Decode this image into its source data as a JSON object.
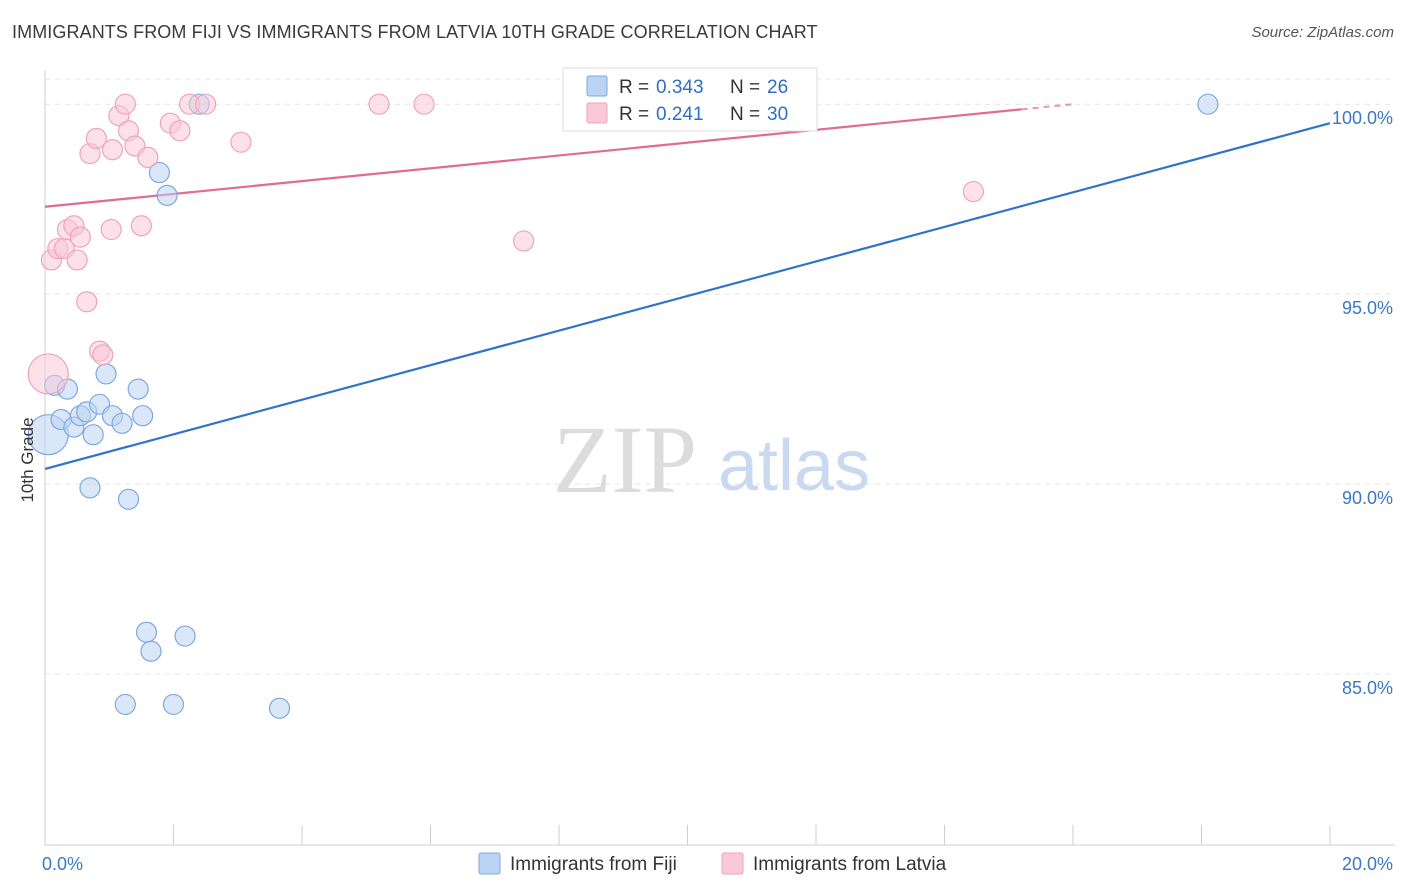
{
  "title": "IMMIGRANTS FROM FIJI VS IMMIGRANTS FROM LATVIA 10TH GRADE CORRELATION CHART",
  "source": "Source: ZipAtlas.com",
  "watermark": {
    "zip": "ZIP",
    "atlas": "atlas"
  },
  "colors": {
    "fiji_fill": "#bcd4f3",
    "fiji_stroke": "#7ea8de",
    "fiji_line": "#2f74c9",
    "latvia_fill": "#f9c9d7",
    "latvia_stroke": "#eea3ba",
    "latvia_line": "#e06b93",
    "grid": "#e3e3e3",
    "axis_label": "#3b78c4"
  },
  "legend": {
    "fiji": {
      "r_label": "R = ",
      "r_value": "0.343",
      "n_label": "N = ",
      "n_value": "26"
    },
    "latvia": {
      "r_label": "R = ",
      "r_value": "0.241",
      "n_label": "N = ",
      "n_value": "30"
    }
  },
  "chart_data": {
    "type": "scatter",
    "title": "IMMIGRANTS FROM FIJI VS IMMIGRANTS FROM LATVIA 10TH GRADE CORRELATION CHART",
    "xlabel": "",
    "ylabel": "10th Grade",
    "xlim": [
      0,
      20
    ],
    "ylim": [
      80.5,
      100.9
    ],
    "x_tick_labels": [
      {
        "value": 0,
        "label": "0.0%"
      },
      {
        "value": 20,
        "label": "20.0%"
      }
    ],
    "y_tick_labels": [
      {
        "value": 100,
        "label": "100.0%"
      },
      {
        "value": 95,
        "label": "95.0%"
      },
      {
        "value": 90,
        "label": "90.0%"
      },
      {
        "value": 85,
        "label": "85.0%"
      }
    ],
    "series": [
      {
        "name": "Immigrants from Fiji",
        "key": "fiji",
        "trend": {
          "x0": 0,
          "y0": 90.4,
          "x1": 20,
          "y1": 99.5,
          "dash_from": null
        },
        "points": [
          {
            "x": 0.05,
            "y": 91.3,
            "r": 20
          },
          {
            "x": 0.15,
            "y": 92.6,
            "r": 10
          },
          {
            "x": 0.35,
            "y": 92.5,
            "r": 10
          },
          {
            "x": 0.25,
            "y": 91.7,
            "r": 10
          },
          {
            "x": 0.45,
            "y": 91.5,
            "r": 10
          },
          {
            "x": 0.55,
            "y": 91.8,
            "r": 10
          },
          {
            "x": 0.65,
            "y": 91.9,
            "r": 10
          },
          {
            "x": 0.75,
            "y": 91.3,
            "r": 10
          },
          {
            "x": 0.85,
            "y": 92.1,
            "r": 10
          },
          {
            "x": 0.95,
            "y": 92.9,
            "r": 10
          },
          {
            "x": 1.05,
            "y": 91.8,
            "r": 10
          },
          {
            "x": 1.2,
            "y": 91.6,
            "r": 10
          },
          {
            "x": 1.45,
            "y": 92.5,
            "r": 10
          },
          {
            "x": 1.52,
            "y": 91.8,
            "r": 10
          },
          {
            "x": 0.7,
            "y": 89.9,
            "r": 10
          },
          {
            "x": 1.3,
            "y": 89.6,
            "r": 10
          },
          {
            "x": 1.78,
            "y": 98.2,
            "r": 10
          },
          {
            "x": 1.9,
            "y": 97.6,
            "r": 10
          },
          {
            "x": 2.4,
            "y": 100.0,
            "r": 10
          },
          {
            "x": 1.58,
            "y": 86.1,
            "r": 10
          },
          {
            "x": 1.65,
            "y": 85.6,
            "r": 10
          },
          {
            "x": 2.18,
            "y": 86.0,
            "r": 10
          },
          {
            "x": 1.25,
            "y": 84.2,
            "r": 10
          },
          {
            "x": 2.0,
            "y": 84.2,
            "r": 10
          },
          {
            "x": 3.65,
            "y": 84.1,
            "r": 10
          },
          {
            "x": 18.1,
            "y": 100.0,
            "r": 10
          }
        ]
      },
      {
        "name": "Immigrants from Latvia",
        "key": "latvia",
        "trend": {
          "x0": 0,
          "y0": 97.3,
          "x1": 16.0,
          "y1": 100.0,
          "dash_from": 15.2
        },
        "points": [
          {
            "x": 0.05,
            "y": 92.9,
            "r": 20
          },
          {
            "x": 0.1,
            "y": 95.9,
            "r": 10
          },
          {
            "x": 0.2,
            "y": 96.2,
            "r": 10
          },
          {
            "x": 0.3,
            "y": 96.2,
            "r": 10
          },
          {
            "x": 0.35,
            "y": 96.7,
            "r": 10
          },
          {
            "x": 0.45,
            "y": 96.8,
            "r": 10
          },
          {
            "x": 0.55,
            "y": 96.5,
            "r": 10
          },
          {
            "x": 0.5,
            "y": 95.9,
            "r": 10
          },
          {
            "x": 0.65,
            "y": 94.8,
            "r": 10
          },
          {
            "x": 0.85,
            "y": 93.5,
            "r": 10
          },
          {
            "x": 0.9,
            "y": 93.4,
            "r": 10
          },
          {
            "x": 0.7,
            "y": 98.7,
            "r": 10
          },
          {
            "x": 0.8,
            "y": 99.1,
            "r": 10
          },
          {
            "x": 1.05,
            "y": 98.8,
            "r": 10
          },
          {
            "x": 1.15,
            "y": 99.7,
            "r": 10
          },
          {
            "x": 1.25,
            "y": 100.0,
            "r": 10
          },
          {
            "x": 1.3,
            "y": 99.3,
            "r": 10
          },
          {
            "x": 1.4,
            "y": 98.9,
            "r": 10
          },
          {
            "x": 1.6,
            "y": 98.6,
            "r": 10
          },
          {
            "x": 1.03,
            "y": 96.7,
            "r": 10
          },
          {
            "x": 1.5,
            "y": 96.8,
            "r": 10
          },
          {
            "x": 1.95,
            "y": 99.5,
            "r": 10
          },
          {
            "x": 2.1,
            "y": 99.3,
            "r": 10
          },
          {
            "x": 2.25,
            "y": 100.0,
            "r": 10
          },
          {
            "x": 2.5,
            "y": 100.0,
            "r": 10
          },
          {
            "x": 3.05,
            "y": 99.0,
            "r": 10
          },
          {
            "x": 5.2,
            "y": 100.0,
            "r": 10
          },
          {
            "x": 5.9,
            "y": 100.0,
            "r": 10
          },
          {
            "x": 7.45,
            "y": 96.4,
            "r": 10
          },
          {
            "x": 14.45,
            "y": 97.7,
            "r": 10
          }
        ]
      }
    ],
    "legend_position": "top-center",
    "grid": true
  }
}
